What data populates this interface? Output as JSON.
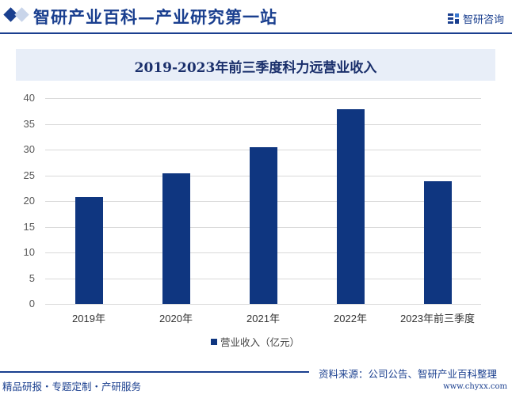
{
  "header": {
    "site_title": "智研产业百科—产业研究第一站",
    "logo_text": "智研咨询"
  },
  "chart_data": {
    "type": "bar",
    "title": "2019-2023年前三季度科力远营业收入",
    "categories": [
      "2019年",
      "2020年",
      "2021年",
      "2022年",
      "2023年前三季度"
    ],
    "series": [
      {
        "name": "营业收入（亿元）",
        "values": [
          20.8,
          25.4,
          30.5,
          37.8,
          23.8
        ],
        "color": "#0f3680"
      }
    ],
    "xlabel": "",
    "ylabel": "",
    "ylim": [
      0,
      40
    ],
    "yticks": [
      0,
      5,
      10,
      15,
      20,
      25,
      30,
      35,
      40
    ],
    "grid": true,
    "legend_position": "bottom-left"
  },
  "legend": {
    "label": "营业收入（亿元）"
  },
  "footer": {
    "tagline": "精品研报・专题定制・产研服务",
    "source": "资料来源：公司公告、智研产业百科整理",
    "url": "www.chyxx.com"
  },
  "colors": {
    "brand": "#1a3f8f",
    "bar": "#0f3680",
    "title_band": "#e8eef8"
  }
}
